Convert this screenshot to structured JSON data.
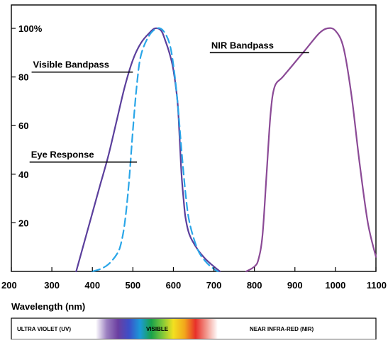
{
  "chart_data": {
    "type": "line",
    "title": "",
    "xlabel": "Wavelength (nm)",
    "ylabel": "",
    "xlim": [
      200,
      1100
    ],
    "ylim": [
      0,
      105
    ],
    "x_ticks": [
      200,
      300,
      400,
      500,
      600,
      700,
      800,
      900,
      1000,
      1100
    ],
    "y_ticks": [
      {
        "value": 100,
        "label": "100%"
      },
      {
        "value": 80,
        "label": "80"
      },
      {
        "value": 60,
        "label": "60"
      },
      {
        "value": 40,
        "label": "40"
      },
      {
        "value": 20,
        "label": "20"
      }
    ],
    "grid": false,
    "series": [
      {
        "name": "Visible Bandpass",
        "style": "solid",
        "color": "#5b3f9c",
        "x": [
          360,
          380,
          400,
          420,
          440,
          460,
          480,
          500,
          520,
          540,
          555,
          570,
          580,
          590,
          600,
          610,
          615,
          620,
          625,
          630,
          640,
          660,
          680,
          700,
          715
        ],
        "y": [
          0,
          12,
          24,
          36,
          48,
          62,
          76,
          87,
          94,
          98,
          100,
          99,
          95,
          90,
          83,
          70,
          56,
          40,
          30,
          22,
          15,
          9,
          5,
          2,
          0
        ]
      },
      {
        "name": "Eye Response",
        "style": "dashed",
        "color": "#2aa6e8",
        "x": [
          400,
          420,
          440,
          460,
          470,
          480,
          490,
          500,
          510,
          520,
          540,
          560,
          575,
          590,
          600,
          610,
          620,
          630,
          640,
          660,
          680,
          700,
          710
        ],
        "y": [
          0,
          1,
          3,
          7,
          11,
          20,
          36,
          58,
          77,
          89,
          97,
          100,
          99,
          94,
          85,
          70,
          50,
          32,
          20,
          9,
          4,
          1,
          0
        ]
      },
      {
        "name": "NIR Bandpass",
        "style": "solid",
        "color": "#8b4a96",
        "x": [
          780,
          800,
          810,
          820,
          830,
          840,
          850,
          870,
          900,
          930,
          960,
          980,
          1000,
          1020,
          1040,
          1060,
          1080,
          1100
        ],
        "y": [
          0,
          2,
          5,
          15,
          40,
          65,
          76,
          80,
          86,
          92,
          98,
          100,
          99,
          92,
          72,
          44,
          20,
          6
        ]
      }
    ],
    "annotations": [
      {
        "text": "Visible Bandpass",
        "x_start": 250,
        "x_end": 500,
        "y": 82
      },
      {
        "text": "Eye Response",
        "x_start": 245,
        "x_end": 510,
        "y": 45
      },
      {
        "text": "NIR Bandpass",
        "x_start": 690,
        "x_end": 935,
        "y": 90
      }
    ]
  },
  "spectrum_bar": {
    "uv_label": "ULTRA VIOLET (UV)",
    "visible_label": "VISIBLE",
    "nir_label": "NEAR INFRA-RED (NIR)",
    "colors": [
      "#ffffff",
      "#9b7fc0",
      "#6b3fa0",
      "#3c4fc8",
      "#1c9ad8",
      "#19a24a",
      "#7cc83a",
      "#f2e020",
      "#f2a81c",
      "#e8302a",
      "#f29a90",
      "#ffffff"
    ]
  }
}
